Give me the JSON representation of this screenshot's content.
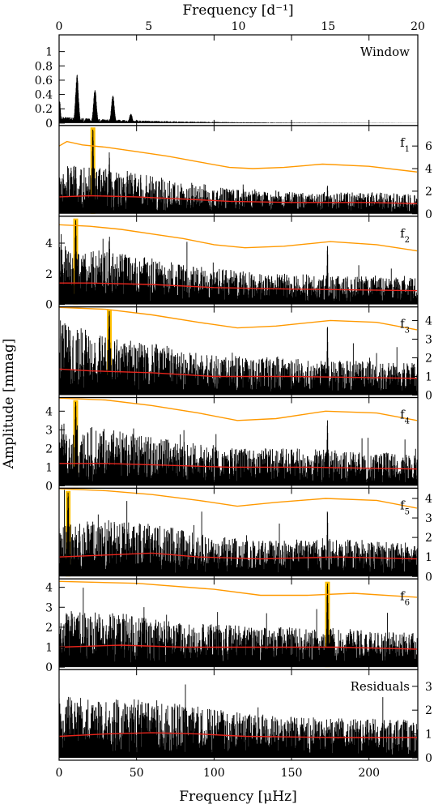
{
  "chart_data": {
    "type": "line",
    "title": "",
    "xlabel": "Frequency [μHz]",
    "x2label": "Frequency [d⁻¹]",
    "ylabel": "Amplitude [mmag]",
    "xlim": [
      0,
      231.5
    ],
    "x_ticks": [
      0,
      50,
      100,
      150,
      200
    ],
    "x2lim": [
      0,
      20
    ],
    "x2_ticks": [
      0,
      5,
      10,
      15,
      20
    ],
    "colors": {
      "spectrum": "#000000",
      "threshold": "#ff9900",
      "mean": "#e8241b",
      "highlight": "#ffc000"
    },
    "panels": [
      {
        "label": "Window",
        "sub": "",
        "ylim": [
          0,
          1.2
        ],
        "ticks_left": [
          0,
          0.2,
          0.4,
          0.6,
          0.8,
          1
        ],
        "ticks_right": [],
        "peaks": [
          {
            "f": 11.57,
            "a": 0.68,
            "w": 1.3
          },
          {
            "f": 23.15,
            "a": 0.48,
            "w": 1.3
          },
          {
            "f": 34.72,
            "a": 0.4,
            "w": 1.3
          },
          {
            "f": 46.3,
            "a": 0.14,
            "w": 1.2
          },
          {
            "f": 0.3,
            "a": 0.32,
            "w": 0.8
          }
        ],
        "noise": 0.03
      },
      {
        "label": "f",
        "sub": "1",
        "ylim": [
          0,
          7.6
        ],
        "ticks_left": [],
        "ticks_right": [
          0,
          2,
          4,
          6
        ],
        "highlight": 21.8,
        "highlight_amp": 7.5,
        "threshold": [
          [
            0,
            6.0
          ],
          [
            5,
            6.4
          ],
          [
            15,
            6.1
          ],
          [
            30,
            5.9
          ],
          [
            50,
            5.5
          ],
          [
            70,
            5.1
          ],
          [
            90,
            4.6
          ],
          [
            110,
            4.1
          ],
          [
            125,
            4.0
          ],
          [
            145,
            4.1
          ],
          [
            170,
            4.4
          ],
          [
            200,
            4.2
          ],
          [
            231,
            3.7
          ]
        ],
        "mean": [
          [
            0,
            1.5
          ],
          [
            20,
            1.6
          ],
          [
            50,
            1.5
          ],
          [
            80,
            1.3
          ],
          [
            110,
            1.1
          ],
          [
            150,
            1.0
          ],
          [
            200,
            1.0
          ],
          [
            231,
            0.9
          ]
        ],
        "peaks": [
          {
            "f": 10.7,
            "a": 4.6,
            "w": 0.5
          },
          {
            "f": 32.4,
            "a": 5.6,
            "w": 0.5
          },
          {
            "f": 44.0,
            "a": 3.8,
            "w": 0.5
          },
          {
            "f": 173.2,
            "a": 2.8,
            "w": 0.4
          }
        ],
        "noise": 1.55
      },
      {
        "label": "f",
        "sub": "2",
        "ylim": [
          0,
          5.6
        ],
        "ticks_left": [
          0,
          2,
          4
        ],
        "ticks_right": [],
        "highlight": 10.7,
        "highlight_amp": 5.5,
        "threshold": [
          [
            0,
            5.2
          ],
          [
            20,
            5.1
          ],
          [
            40,
            4.9
          ],
          [
            60,
            4.6
          ],
          [
            80,
            4.3
          ],
          [
            100,
            3.9
          ],
          [
            120,
            3.7
          ],
          [
            145,
            3.8
          ],
          [
            175,
            4.1
          ],
          [
            205,
            3.9
          ],
          [
            231,
            3.5
          ]
        ],
        "mean": [
          [
            0,
            1.4
          ],
          [
            20,
            1.4
          ],
          [
            60,
            1.3
          ],
          [
            100,
            1.1
          ],
          [
            150,
            1.0
          ],
          [
            231,
            0.9
          ]
        ],
        "peaks": [
          {
            "f": 32.4,
            "a": 4.9,
            "w": 0.5
          },
          {
            "f": 173.2,
            "a": 4.0,
            "w": 0.4
          }
        ],
        "noise": 1.45
      },
      {
        "label": "f",
        "sub": "3",
        "ylim": [
          0,
          4.6
        ],
        "ticks_left": [],
        "ticks_right": [
          0,
          1,
          2,
          3,
          4
        ],
        "highlight": 32.4,
        "highlight_amp": 4.5,
        "threshold": [
          [
            0,
            4.7
          ],
          [
            30,
            4.6
          ],
          [
            60,
            4.3
          ],
          [
            90,
            3.9
          ],
          [
            115,
            3.6
          ],
          [
            140,
            3.7
          ],
          [
            175,
            4.0
          ],
          [
            205,
            3.9
          ],
          [
            231,
            3.5
          ]
        ],
        "mean": [
          [
            0,
            1.4
          ],
          [
            20,
            1.3
          ],
          [
            60,
            1.2
          ],
          [
            100,
            1.0
          ],
          [
            150,
            1.0
          ],
          [
            231,
            0.9
          ]
        ],
        "peaks": [
          {
            "f": 173.2,
            "a": 3.9,
            "w": 0.4
          }
        ],
        "noise": 1.35
      },
      {
        "label": "f",
        "sub": "4",
        "ylim": [
          0,
          4.6
        ],
        "ticks_left": [
          0,
          1,
          2,
          3,
          4
        ],
        "ticks_right": [],
        "highlight": 10.7,
        "highlight_amp": 4.5,
        "threshold": [
          [
            0,
            4.7
          ],
          [
            30,
            4.6
          ],
          [
            60,
            4.3
          ],
          [
            90,
            3.9
          ],
          [
            115,
            3.5
          ],
          [
            140,
            3.6
          ],
          [
            172,
            4.0
          ],
          [
            205,
            3.9
          ],
          [
            231,
            3.5
          ]
        ],
        "mean": [
          [
            0,
            1.2
          ],
          [
            30,
            1.2
          ],
          [
            70,
            1.1
          ],
          [
            110,
            1.0
          ],
          [
            160,
            1.0
          ],
          [
            231,
            0.9
          ]
        ],
        "peaks": [
          {
            "f": 173.2,
            "a": 3.8,
            "w": 0.4
          }
        ],
        "noise": 1.35
      },
      {
        "label": "f",
        "sub": "5",
        "ylim": [
          0,
          4.4
        ],
        "ticks_left": [],
        "ticks_right": [
          0,
          1,
          2,
          3,
          4
        ],
        "highlight": 5.8,
        "highlight_amp": 4.3,
        "threshold": [
          [
            0,
            4.5
          ],
          [
            30,
            4.4
          ],
          [
            60,
            4.2
          ],
          [
            90,
            3.9
          ],
          [
            115,
            3.6
          ],
          [
            140,
            3.8
          ],
          [
            172,
            4.0
          ],
          [
            205,
            3.9
          ],
          [
            231,
            3.5
          ]
        ],
        "mean": [
          [
            0,
            1.0
          ],
          [
            30,
            1.1
          ],
          [
            60,
            1.2
          ],
          [
            90,
            1.0
          ],
          [
            130,
            0.9
          ],
          [
            180,
            1.0
          ],
          [
            231,
            0.9
          ]
        ],
        "peaks": [
          {
            "f": 173.2,
            "a": 3.6,
            "w": 0.4
          }
        ],
        "noise": 1.35
      },
      {
        "label": "f",
        "sub": "6",
        "ylim": [
          0,
          4.3
        ],
        "ticks_left": [
          0,
          1,
          2,
          3,
          4
        ],
        "ticks_right": [],
        "highlight": 173.2,
        "highlight_amp": 4.2,
        "threshold": [
          [
            0,
            4.3
          ],
          [
            50,
            4.2
          ],
          [
            100,
            3.9
          ],
          [
            130,
            3.6
          ],
          [
            160,
            3.6
          ],
          [
            190,
            3.7
          ],
          [
            231,
            3.5
          ]
        ],
        "mean": [
          [
            0,
            1.0
          ],
          [
            40,
            1.1
          ],
          [
            80,
            1.0
          ],
          [
            120,
            1.0
          ],
          [
            180,
            1.0
          ],
          [
            231,
            0.9
          ]
        ],
        "peaks": [],
        "noise": 1.35
      },
      {
        "label": "Residuals",
        "sub": "",
        "ylim": [
          0,
          3.6
        ],
        "ticks_left": [],
        "ticks_right": [
          0,
          1,
          2,
          3
        ],
        "threshold": [],
        "mean": [
          [
            0,
            0.9
          ],
          [
            30,
            1.0
          ],
          [
            60,
            1.05
          ],
          [
            90,
            1.0
          ],
          [
            120,
            0.9
          ],
          [
            180,
            0.85
          ],
          [
            231,
            0.85
          ]
        ],
        "peaks": [],
        "noise": 1.3
      }
    ]
  }
}
